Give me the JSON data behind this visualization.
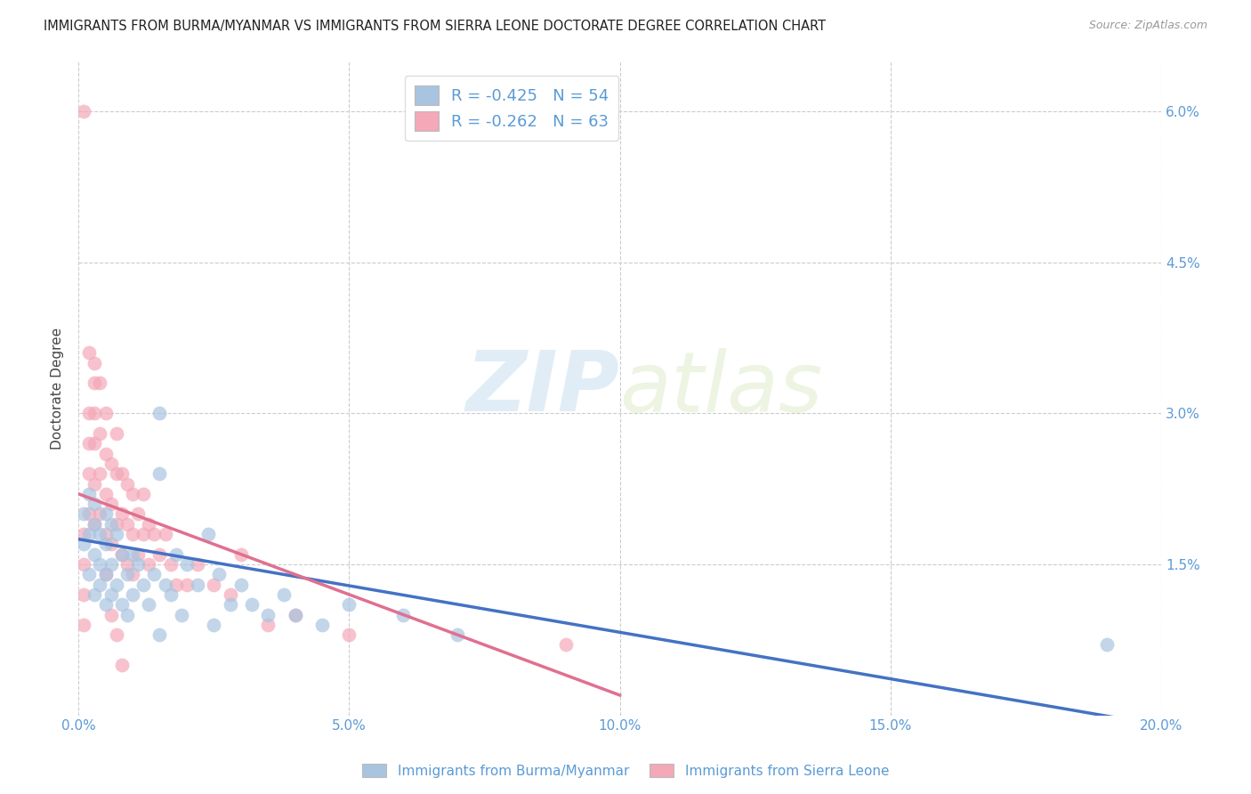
{
  "title": "IMMIGRANTS FROM BURMA/MYANMAR VS IMMIGRANTS FROM SIERRA LEONE DOCTORATE DEGREE CORRELATION CHART",
  "source": "Source: ZipAtlas.com",
  "xlabel": "",
  "ylabel": "Doctorate Degree",
  "xlim": [
    0.0,
    0.2
  ],
  "ylim": [
    0.0,
    0.065
  ],
  "xticks": [
    0.0,
    0.05,
    0.1,
    0.15,
    0.2
  ],
  "xtick_labels": [
    "0.0%",
    "5.0%",
    "10.0%",
    "15.0%",
    "20.0%"
  ],
  "yticks": [
    0.0,
    0.015,
    0.03,
    0.045,
    0.06
  ],
  "ytick_labels": [
    "",
    "1.5%",
    "3.0%",
    "4.5%",
    "6.0%"
  ],
  "legend1_label": "R = -0.425   N = 54",
  "legend2_label": "R = -0.262   N = 63",
  "footer1": "Immigrants from Burma/Myanmar",
  "footer2": "Immigrants from Sierra Leone",
  "blue_color": "#a8c4e0",
  "pink_color": "#f4a8b8",
  "blue_line_color": "#4472c4",
  "pink_line_color": "#e07090",
  "axis_color": "#5b9bd5",
  "watermark_zip": "ZIP",
  "watermark_atlas": "atlas",
  "blue_R": -0.425,
  "blue_N": 54,
  "pink_R": -0.262,
  "pink_N": 63,
  "blue_x": [
    0.001,
    0.001,
    0.002,
    0.002,
    0.002,
    0.003,
    0.003,
    0.003,
    0.003,
    0.004,
    0.004,
    0.004,
    0.005,
    0.005,
    0.005,
    0.005,
    0.006,
    0.006,
    0.006,
    0.007,
    0.007,
    0.008,
    0.008,
    0.009,
    0.009,
    0.01,
    0.01,
    0.011,
    0.012,
    0.013,
    0.014,
    0.015,
    0.015,
    0.016,
    0.017,
    0.018,
    0.019,
    0.02,
    0.022,
    0.024,
    0.025,
    0.026,
    0.028,
    0.03,
    0.032,
    0.035,
    0.038,
    0.04,
    0.045,
    0.05,
    0.06,
    0.07,
    0.19,
    0.015
  ],
  "blue_y": [
    0.02,
    0.017,
    0.022,
    0.018,
    0.014,
    0.021,
    0.016,
    0.012,
    0.019,
    0.018,
    0.015,
    0.013,
    0.02,
    0.017,
    0.014,
    0.011,
    0.019,
    0.015,
    0.012,
    0.018,
    0.013,
    0.016,
    0.011,
    0.014,
    0.01,
    0.016,
    0.012,
    0.015,
    0.013,
    0.011,
    0.014,
    0.03,
    0.008,
    0.013,
    0.012,
    0.016,
    0.01,
    0.015,
    0.013,
    0.018,
    0.009,
    0.014,
    0.011,
    0.013,
    0.011,
    0.01,
    0.012,
    0.01,
    0.009,
    0.011,
    0.01,
    0.008,
    0.007,
    0.024
  ],
  "pink_x": [
    0.001,
    0.001,
    0.001,
    0.001,
    0.002,
    0.002,
    0.002,
    0.002,
    0.003,
    0.003,
    0.003,
    0.003,
    0.003,
    0.004,
    0.004,
    0.004,
    0.005,
    0.005,
    0.005,
    0.005,
    0.006,
    0.006,
    0.006,
    0.007,
    0.007,
    0.007,
    0.008,
    0.008,
    0.008,
    0.009,
    0.009,
    0.009,
    0.01,
    0.01,
    0.01,
    0.011,
    0.011,
    0.012,
    0.012,
    0.013,
    0.013,
    0.014,
    0.015,
    0.016,
    0.017,
    0.018,
    0.02,
    0.022,
    0.025,
    0.028,
    0.03,
    0.035,
    0.04,
    0.05,
    0.001,
    0.002,
    0.003,
    0.004,
    0.005,
    0.006,
    0.007,
    0.008,
    0.09
  ],
  "pink_y": [
    0.06,
    0.018,
    0.015,
    0.012,
    0.03,
    0.027,
    0.024,
    0.02,
    0.033,
    0.03,
    0.027,
    0.023,
    0.019,
    0.028,
    0.024,
    0.02,
    0.026,
    0.022,
    0.018,
    0.014,
    0.025,
    0.021,
    0.017,
    0.028,
    0.024,
    0.019,
    0.024,
    0.02,
    0.016,
    0.023,
    0.019,
    0.015,
    0.022,
    0.018,
    0.014,
    0.02,
    0.016,
    0.022,
    0.018,
    0.019,
    0.015,
    0.018,
    0.016,
    0.018,
    0.015,
    0.013,
    0.013,
    0.015,
    0.013,
    0.012,
    0.016,
    0.009,
    0.01,
    0.008,
    0.009,
    0.036,
    0.035,
    0.033,
    0.03,
    0.01,
    0.008,
    0.005,
    0.007
  ],
  "blue_trend_x0": 0.0,
  "blue_trend_y0": 0.0175,
  "blue_trend_x1": 0.2,
  "blue_trend_y1": -0.001,
  "pink_trend_x0": 0.0,
  "pink_trend_y0": 0.022,
  "pink_trend_x1": 0.1,
  "pink_trend_y1": 0.002
}
